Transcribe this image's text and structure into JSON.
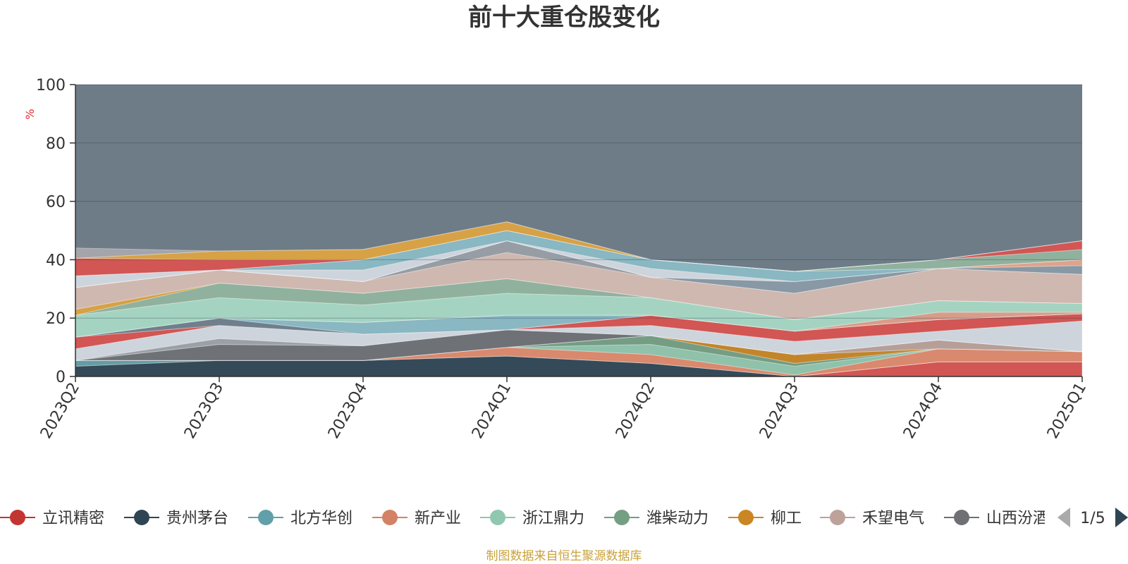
{
  "chart_data": {
    "type": "area",
    "stacked": true,
    "title": "前十大重仓股变化",
    "unit_label": "%",
    "ylim": [
      0,
      100
    ],
    "y_ticks": [
      "0",
      "20",
      "40",
      "60",
      "80",
      "100"
    ],
    "categories": [
      "2023Q2",
      "2023Q3",
      "2023Q4",
      "2024Q1",
      "2024Q2",
      "2024Q3",
      "2024Q4",
      "2025Q1"
    ],
    "grid": true,
    "legend_position": "bottom",
    "series": [
      {
        "name": "立讯精密",
        "color": "#d9534f",
        "values": [
          0,
          0,
          0,
          0,
          0,
          0,
          5.0,
          5.0
        ]
      },
      {
        "name": "贵州茅台",
        "color": "#2f4554",
        "values": [
          3.5,
          5.5,
          5.5,
          7.0,
          4.5,
          0,
          0,
          0
        ]
      },
      {
        "name": "北方华创",
        "color": "#61a0a8",
        "values": [
          2.0,
          0,
          0,
          0,
          0,
          0,
          0,
          0
        ]
      },
      {
        "name": "新产业",
        "color": "#e28a6a",
        "values": [
          0,
          0,
          0,
          3.0,
          3.0,
          0.5,
          4.5,
          3.5
        ]
      },
      {
        "name": "浙江鼎力",
        "color": "#91c7ae",
        "values": [
          0,
          0,
          0,
          0,
          3.5,
          3.0,
          0,
          0
        ]
      },
      {
        "name": "潍柴动力",
        "color": "#749f83",
        "values": [
          0,
          0,
          0,
          0,
          3.0,
          1.0,
          0,
          0
        ]
      },
      {
        "name": "柳工",
        "color": "#ca8622",
        "values": [
          0,
          0,
          0,
          0,
          0,
          3.0,
          0,
          0
        ]
      },
      {
        "name": "禾望电气",
        "color": "#bda29a",
        "values": [
          0,
          0,
          0,
          0,
          0,
          0,
          3.0,
          0
        ]
      },
      {
        "name": "山西汾酒",
        "color": "#6e7074",
        "values": [
          0,
          5.5,
          5.0,
          6.0,
          0,
          0,
          0,
          0
        ]
      },
      {
        "name": "",
        "color": "#9ea3a8",
        "values": [
          0,
          2.0,
          0,
          0,
          0,
          0,
          0,
          0
        ]
      },
      {
        "name": "",
        "color": "#d5dbe3",
        "values": [
          4.0,
          4.5,
          4.0,
          0,
          3.5,
          4.5,
          3.0,
          10.5
        ]
      },
      {
        "name": "",
        "color": "#d9534f",
        "values": [
          4.0,
          0,
          0,
          0,
          3.5,
          3.5,
          4.0,
          2.5
        ]
      },
      {
        "name": "",
        "color": "#6f7f8c",
        "values": [
          0,
          2.5,
          0,
          0,
          0,
          0,
          0,
          0
        ]
      },
      {
        "name": "",
        "color": "#8bbcc7",
        "values": [
          0,
          0,
          4.0,
          5.0,
          0,
          0,
          0,
          0
        ]
      },
      {
        "name": "",
        "color": "#e0a08a",
        "values": [
          0,
          0,
          0,
          0,
          0,
          0,
          2.5,
          0.5
        ]
      },
      {
        "name": "",
        "color": "#a8dbc6",
        "values": [
          7.5,
          7.0,
          6.0,
          7.5,
          6.0,
          4.0,
          4.0,
          3.0
        ]
      },
      {
        "name": "",
        "color": "#93b59e",
        "values": [
          0,
          5.0,
          4.0,
          5.0,
          0,
          0,
          0,
          0
        ]
      },
      {
        "name": "",
        "color": "#e0a43f",
        "values": [
          2.0,
          0,
          0,
          0,
          0,
          0,
          0,
          0
        ]
      },
      {
        "name": "",
        "color": "#d7bdb3",
        "values": [
          7.5,
          4.5,
          4.0,
          9.0,
          7.0,
          9.0,
          11.0,
          10.0
        ]
      },
      {
        "name": "",
        "color": "#9aa0a6",
        "values": [
          0,
          0,
          0,
          4.0,
          0,
          0,
          0,
          0
        ]
      },
      {
        "name": "",
        "color": "#8a9aa6",
        "values": [
          0,
          0,
          0,
          0,
          0,
          4.0,
          0,
          3.0
        ]
      },
      {
        "name": "",
        "color": "#e8a58a",
        "values": [
          0,
          0,
          0,
          0,
          0,
          0,
          0,
          2.0
        ]
      },
      {
        "name": "",
        "color": "#d5dbe3",
        "values": [
          4.0,
          0,
          4.0,
          0,
          3.0,
          0,
          0,
          0
        ]
      },
      {
        "name": "",
        "color": "#8bbcc7",
        "values": [
          0,
          0,
          3.5,
          3.5,
          3.0,
          3.5,
          0,
          0
        ]
      },
      {
        "name": "",
        "color": "#93b59e",
        "values": [
          0,
          0,
          0,
          0,
          0,
          0,
          3.0,
          3.5
        ]
      },
      {
        "name": "",
        "color": "#d9534f",
        "values": [
          6.0,
          3.5,
          0,
          0,
          0,
          0,
          0,
          3.0
        ]
      },
      {
        "name": "",
        "color": "#e0a43f",
        "values": [
          0,
          3.0,
          3.5,
          3.0,
          0,
          0,
          0,
          0
        ]
      },
      {
        "name": "",
        "color": "#a8a8ac",
        "values": [
          3.5,
          0,
          0,
          0,
          0,
          0,
          0,
          0
        ]
      }
    ],
    "background_color": "#6e7c88"
  },
  "legend": {
    "items": [
      {
        "name": "立讯精密",
        "color": "#c23531"
      },
      {
        "name": "贵州茅台",
        "color": "#2f4554"
      },
      {
        "name": "北方华创",
        "color": "#61a0a8"
      },
      {
        "name": "新产业",
        "color": "#d48265"
      },
      {
        "name": "浙江鼎力",
        "color": "#91c7ae"
      },
      {
        "name": "潍柴动力",
        "color": "#749f83"
      },
      {
        "name": "柳工",
        "color": "#ca8622"
      },
      {
        "name": "禾望电气",
        "color": "#bda29a"
      },
      {
        "name": "山西汾酒",
        "color": "#6e7074"
      }
    ],
    "page_indicator": "1/5"
  },
  "footer": {
    "source_text": "制图数据来自恒生聚源数据库"
  }
}
